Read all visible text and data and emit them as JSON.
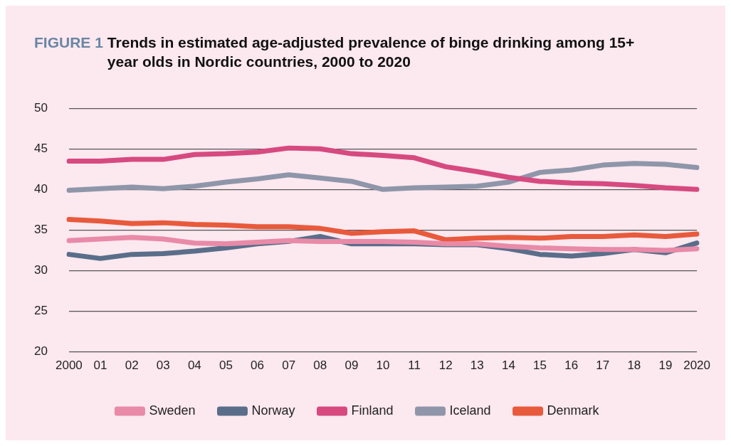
{
  "chart_data": {
    "type": "line",
    "title": "Trends in estimated age-adjusted prevalence of binge drinking among 15+ year olds in Nordic countries, 2000 to 2020",
    "annotations": [
      "FIGURE 1"
    ],
    "categories": [
      "2000",
      "01",
      "02",
      "03",
      "04",
      "05",
      "06",
      "07",
      "08",
      "09",
      "10",
      "11",
      "12",
      "13",
      "14",
      "15",
      "16",
      "17",
      "18",
      "19",
      "2020"
    ],
    "series": [
      {
        "name": "Sweden",
        "color": "#e88aa8",
        "values": [
          33.7,
          33.9,
          34.1,
          33.9,
          33.4,
          33.3,
          33.5,
          33.7,
          33.6,
          33.6,
          33.6,
          33.5,
          33.3,
          33.3,
          33.0,
          32.8,
          32.7,
          32.6,
          32.6,
          32.5,
          32.7
        ]
      },
      {
        "name": "Norway",
        "color": "#5a6e8a",
        "values": [
          32.0,
          31.5,
          32.0,
          32.1,
          32.4,
          32.8,
          33.3,
          33.6,
          34.2,
          33.3,
          33.3,
          33.3,
          33.2,
          33.2,
          32.7,
          32.0,
          31.8,
          32.1,
          32.6,
          32.2,
          33.4
        ]
      },
      {
        "name": "Finland",
        "color": "#d64a80",
        "values": [
          43.5,
          43.5,
          43.7,
          43.7,
          44.3,
          44.4,
          44.6,
          45.1,
          45.0,
          44.4,
          44.2,
          43.9,
          42.8,
          42.2,
          41.5,
          41.0,
          40.8,
          40.7,
          40.5,
          40.2,
          40.0
        ]
      },
      {
        "name": "Iceland",
        "color": "#8f96aa",
        "values": [
          39.9,
          40.1,
          40.3,
          40.1,
          40.4,
          40.9,
          41.3,
          41.8,
          41.4,
          41.0,
          40.0,
          40.2,
          40.3,
          40.4,
          40.9,
          42.1,
          42.4,
          43.0,
          43.2,
          43.1,
          42.7
        ]
      },
      {
        "name": "Denmark",
        "color": "#e85a3c",
        "values": [
          36.3,
          36.1,
          35.8,
          35.9,
          35.7,
          35.6,
          35.4,
          35.4,
          35.2,
          34.6,
          34.8,
          34.9,
          33.8,
          34.0,
          34.1,
          34.0,
          34.2,
          34.2,
          34.4,
          34.2,
          34.5
        ]
      }
    ],
    "ylim": [
      20,
      50
    ],
    "yticks": [
      20,
      25,
      30,
      35,
      40,
      45,
      50
    ],
    "grid": "y",
    "legend": "bottom",
    "marker": "none",
    "line_style": "solid"
  }
}
